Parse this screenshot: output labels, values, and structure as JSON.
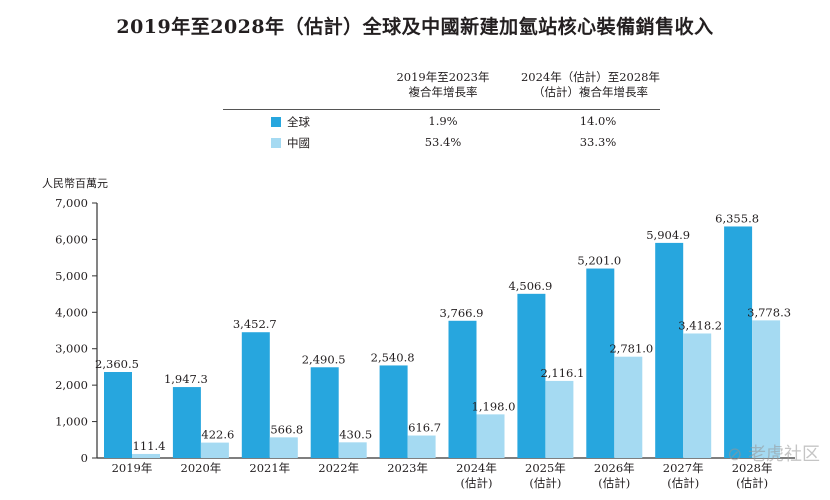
{
  "title": "2019年至2028年（估計）全球及中國新建加氫站核心裝備銷售收入",
  "cagr_table": {
    "headers": [
      "2019年至2023年\n複合年增長率",
      "2024年（估計）至2028年\n（估計）複合年增長率"
    ],
    "header_lines": [
      [
        "2019年至2023年",
        "複合年增長率"
      ],
      [
        "2024年（估計）至2028年",
        "（估計）複合年增長率"
      ]
    ],
    "rows": [
      {
        "label": "全球",
        "cagr_2019_2023": "1.9%",
        "cagr_2024_2028": "14.0%",
        "color": "#27a6de"
      },
      {
        "label": "中國",
        "cagr_2019_2023": "53.4%",
        "cagr_2024_2028": "33.3%",
        "color": "#a5daf2"
      }
    ]
  },
  "chart_data": {
    "type": "bar",
    "title": "2019年至2028年（估計）全球及中國新建加氫站核心裝備銷售收入",
    "ylabel": "人民幣百萬元",
    "xlabel": "",
    "ylim": [
      0,
      7000
    ],
    "yticks": [
      "0",
      "1,000",
      "2,000",
      "3,000",
      "4,000",
      "5,000",
      "6,000",
      "7,000"
    ],
    "categories": [
      [
        "2019年"
      ],
      [
        "2020年"
      ],
      [
        "2021年"
      ],
      [
        "2022年"
      ],
      [
        "2023年"
      ],
      [
        "2024年",
        "(估計)"
      ],
      [
        "2025年",
        "(估計)"
      ],
      [
        "2026年",
        "(估計)"
      ],
      [
        "2027年",
        "(估計)"
      ],
      [
        "2028年",
        "(估計)"
      ]
    ],
    "series": [
      {
        "name": "全球",
        "color": "#27a6de",
        "values": [
          2360.5,
          1947.3,
          3452.7,
          2490.5,
          2540.8,
          3766.9,
          4506.9,
          5201.0,
          5904.9,
          6355.8
        ],
        "labels": [
          "2,360.5",
          "1,947.3",
          "3,452.7",
          "2,490.5",
          "2,540.8",
          "3,766.9",
          "4,506.9",
          "5,201.0",
          "5,904.9",
          "6,355.8"
        ]
      },
      {
        "name": "中國",
        "color": "#a5daf2",
        "values": [
          111.4,
          422.6,
          566.8,
          430.5,
          616.7,
          1198.0,
          2116.1,
          2781.0,
          3418.2,
          3778.3
        ],
        "labels": [
          "111.4",
          "422.6",
          "566.8",
          "430.5",
          "616.7",
          "1,198.0",
          "2,116.1",
          "2,781.0",
          "3,418.2",
          "3,778.3"
        ]
      }
    ],
    "legend": "top",
    "grid": false
  },
  "watermark": "老虎社区"
}
